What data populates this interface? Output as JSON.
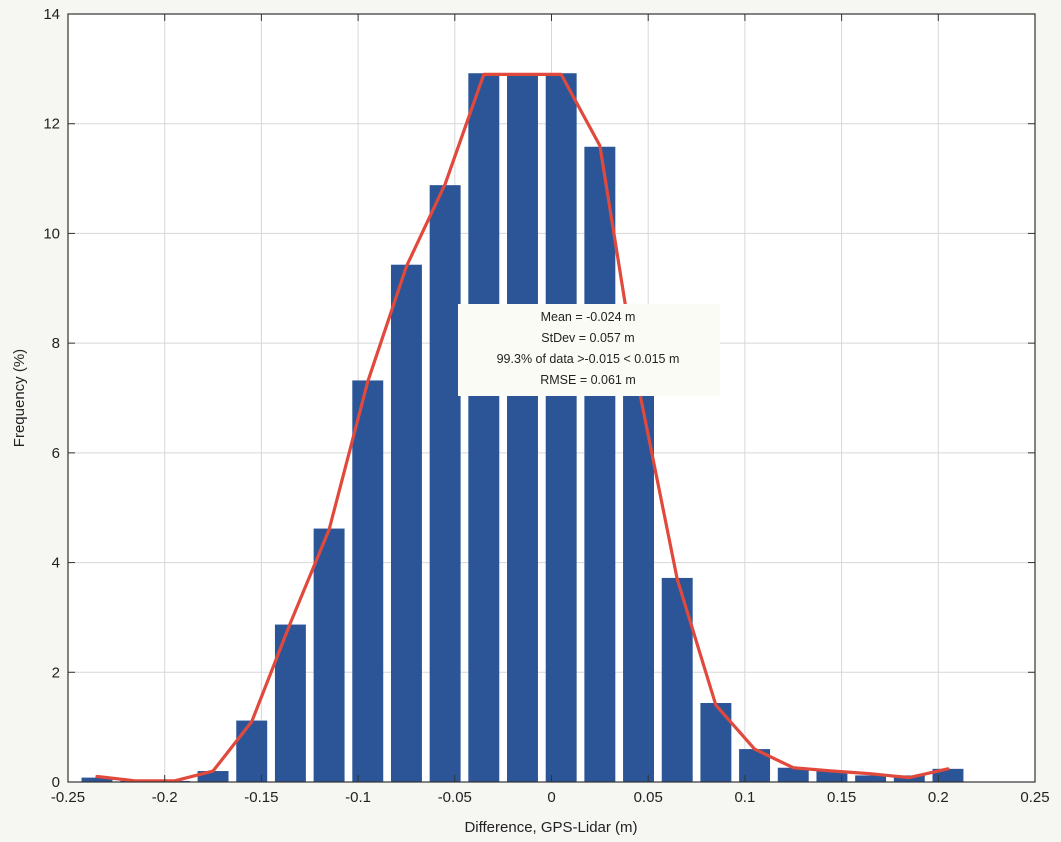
{
  "chart_data": {
    "type": "bar",
    "xlabel": "Difference, GPS-Lidar (m)",
    "ylabel": "Frequency (%)",
    "xlim": [
      -0.25,
      0.25
    ],
    "ylim": [
      0,
      14
    ],
    "xticks": [
      -0.25,
      -0.2,
      -0.15,
      -0.1,
      -0.05,
      0,
      0.05,
      0.1,
      0.15,
      0.2,
      0.25
    ],
    "yticks": [
      0,
      2,
      4,
      6,
      8,
      10,
      12,
      14
    ],
    "xtick_labels": [
      "-0.25",
      "-0.2",
      "-0.15",
      "-0.1",
      "-0.05",
      "0",
      "0.05",
      "0.1",
      "0.15",
      "0.2",
      "0.25"
    ],
    "ytick_labels": [
      "0",
      "2",
      "4",
      "6",
      "8",
      "10",
      "12",
      "14"
    ],
    "grid": true,
    "bin_width": 0.02,
    "bars": {
      "x": [
        -0.235,
        -0.215,
        -0.195,
        -0.175,
        -0.155,
        -0.135,
        -0.115,
        -0.095,
        -0.075,
        -0.055,
        -0.035,
        -0.015,
        0.005,
        0.025,
        0.045,
        0.065,
        0.085,
        0.105,
        0.125,
        0.145,
        0.165,
        0.185,
        0.205
      ],
      "values": [
        0.08,
        0.02,
        0.02,
        0.2,
        1.12,
        2.87,
        4.62,
        7.32,
        9.43,
        10.88,
        12.92,
        12.92,
        12.92,
        11.58,
        7.18,
        3.72,
        1.44,
        0.6,
        0.26,
        0.2,
        0.12,
        0.12,
        0.24
      ],
      "color": "#2b5597"
    },
    "curve": {
      "x": [
        -0.235,
        -0.215,
        -0.195,
        -0.175,
        -0.155,
        -0.135,
        -0.115,
        -0.095,
        -0.075,
        -0.055,
        -0.035,
        -0.015,
        0.005,
        0.025,
        0.045,
        0.065,
        0.085,
        0.105,
        0.125,
        0.145,
        0.165,
        0.185,
        0.205
      ],
      "values": [
        0.1,
        0.02,
        0.02,
        0.2,
        1.1,
        2.9,
        4.6,
        7.3,
        9.4,
        10.9,
        12.9,
        12.9,
        12.9,
        11.6,
        7.2,
        3.7,
        1.4,
        0.6,
        0.26,
        0.2,
        0.15,
        0.08,
        0.24
      ],
      "color": "#e0493b"
    },
    "annotation": {
      "lines": [
        "Mean = -0.024 m",
        "StDev = 0.057 m",
        "99.3% of data >-0.015 < 0.015 m",
        "RMSE = 0.061 m"
      ],
      "position": "center"
    }
  }
}
